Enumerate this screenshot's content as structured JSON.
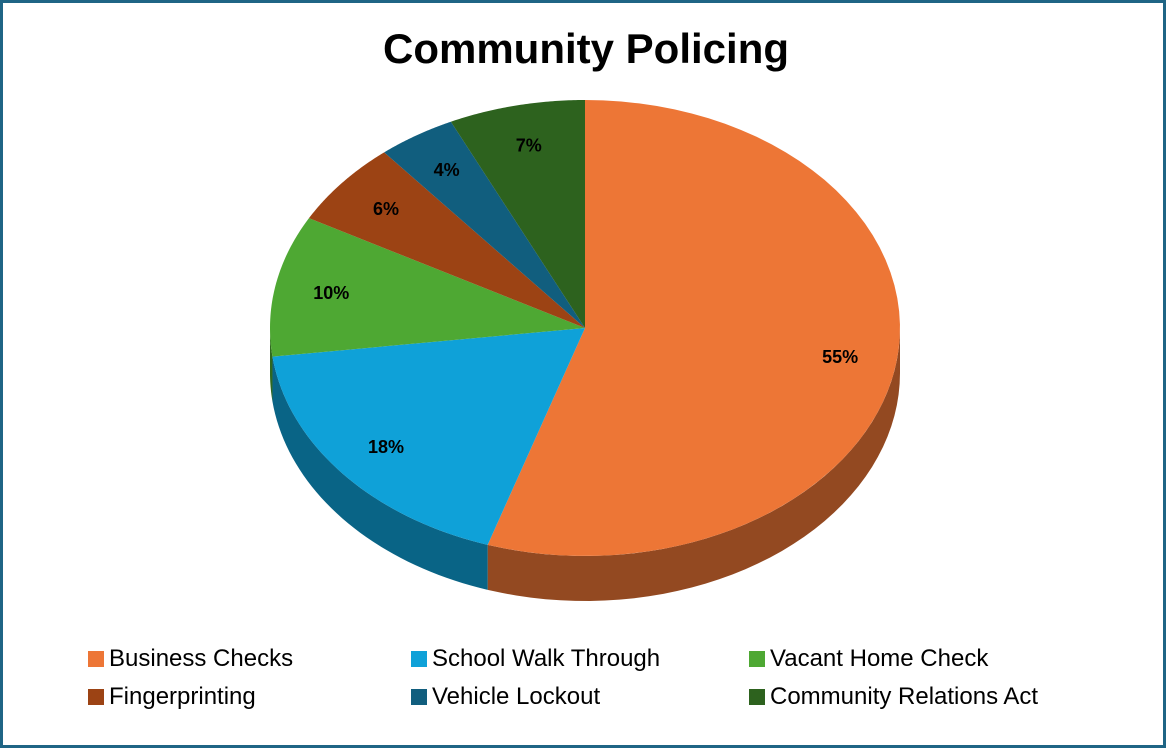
{
  "chart_data": {
    "type": "pie",
    "title": "Community Policing",
    "categories": [
      "Business Checks",
      "School Walk Through",
      "Vacant Home Check",
      "Fingerprinting",
      "Vehicle Lockout",
      "Community Relations Act"
    ],
    "values": [
      55,
      18,
      10,
      6,
      4,
      7
    ],
    "labels": [
      "55%",
      "18%",
      "10%",
      "6%",
      "4%",
      "7%"
    ],
    "colors": [
      "#ed7636",
      "#0fa1d8",
      "#4ea833",
      "#9c4314",
      "#115e7e",
      "#2d621e"
    ],
    "legend_position": "bottom"
  }
}
